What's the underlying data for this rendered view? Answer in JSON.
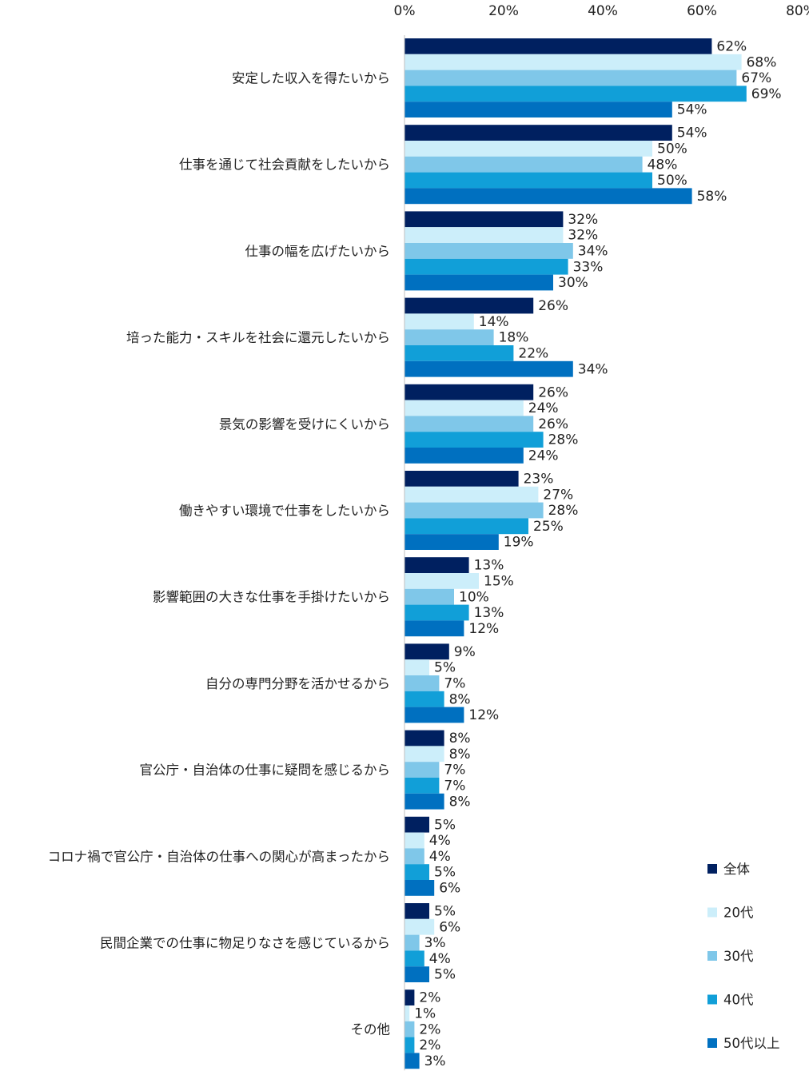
{
  "chart_data": {
    "type": "bar",
    "orientation": "horizontal",
    "unit": "%",
    "xlim": [
      0,
      80
    ],
    "xticks": [
      0,
      20,
      40,
      60,
      80
    ],
    "tick_labels": [
      "0%",
      "20%",
      "40%",
      "60%",
      "80%"
    ],
    "grid": false,
    "legend_position": "bottom-right",
    "categories": [
      "安定した収入を得たいから",
      "仕事を通じて社会貢献をしたいから",
      "仕事の幅を広げたいから",
      "培った能力・スキルを社会に還元したいから",
      "景気の影響を受けにくいから",
      "働きやすい環境で仕事をしたいから",
      "影響範囲の大きな仕事を手掛けたいから",
      "自分の専門分野を活かせるから",
      "官公庁・自治体の仕事に疑問を感じるから",
      "コロナ禍で官公庁・自治体の仕事への関心が高まったから",
      "民間企業での仕事に物足りなさを感じているから",
      "その他"
    ],
    "series": [
      {
        "name": "全体",
        "color": "#002060",
        "values": [
          62,
          54,
          32,
          26,
          26,
          23,
          13,
          9,
          8,
          5,
          5,
          2
        ]
      },
      {
        "name": "20代",
        "color": "#CCEEFA",
        "values": [
          68,
          50,
          32,
          14,
          24,
          27,
          15,
          5,
          8,
          4,
          6,
          1
        ]
      },
      {
        "name": "30代",
        "color": "#7FC7E9",
        "values": [
          67,
          48,
          34,
          18,
          26,
          28,
          10,
          7,
          7,
          4,
          3,
          2
        ]
      },
      {
        "name": "40代",
        "color": "#119FD8",
        "values": [
          69,
          50,
          33,
          22,
          28,
          25,
          13,
          8,
          7,
          5,
          4,
          2
        ]
      },
      {
        "name": "50代以上",
        "color": "#0070C0",
        "values": [
          54,
          58,
          30,
          34,
          24,
          19,
          12,
          12,
          8,
          6,
          5,
          3
        ]
      }
    ]
  }
}
